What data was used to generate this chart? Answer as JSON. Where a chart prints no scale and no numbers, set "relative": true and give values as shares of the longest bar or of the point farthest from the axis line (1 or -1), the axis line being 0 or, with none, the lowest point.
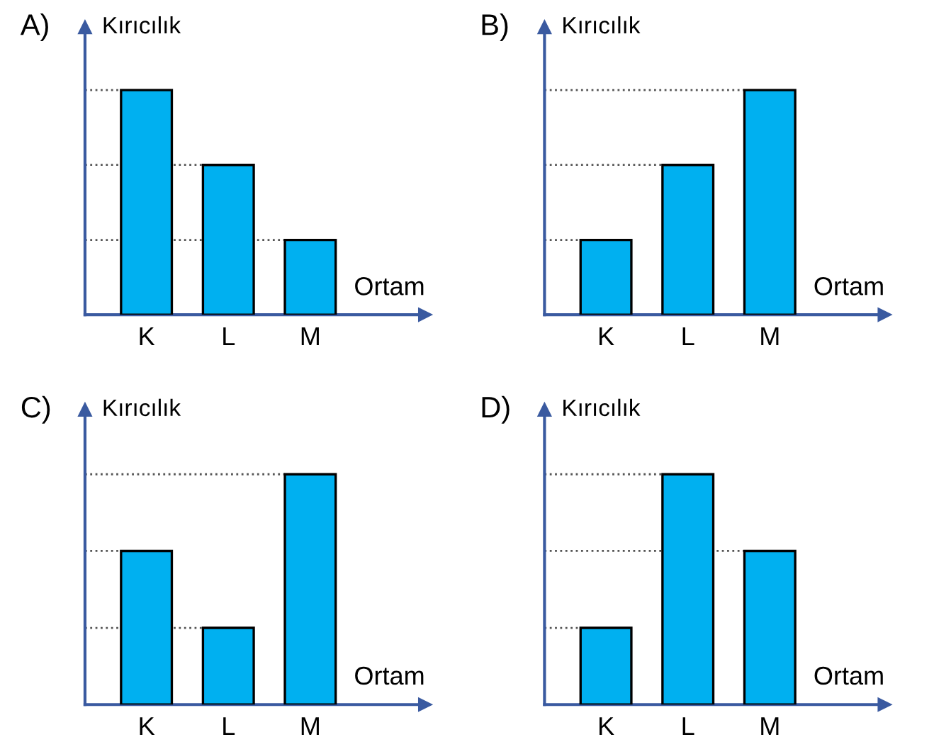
{
  "chart_data": [
    {
      "type": "bar",
      "title": "A)",
      "ylabel": "Kırıcılık",
      "xlabel": "Ortam",
      "relative": true,
      "categories": [
        "K",
        "L",
        "M"
      ],
      "values": [
        1,
        0.667,
        0.333
      ],
      "color": "#00b0f0",
      "grid": false,
      "ref_lines": [
        {
          "axis": "y",
          "value": 1,
          "color": "#555555",
          "line_style": "dotted"
        },
        {
          "axis": "y",
          "value": 0.667,
          "color": "#555555",
          "line_style": "dotted"
        },
        {
          "axis": "y",
          "value": 0.333,
          "color": "#555555",
          "line_style": "dotted"
        }
      ]
    },
    {
      "type": "bar",
      "title": "B)",
      "ylabel": "Kırıcılık",
      "xlabel": "Ortam",
      "relative": true,
      "categories": [
        "K",
        "L",
        "M"
      ],
      "values": [
        0.333,
        0.667,
        1
      ],
      "color": "#00b0f0",
      "grid": false,
      "ref_lines": [
        {
          "axis": "y",
          "value": 1,
          "color": "#555555",
          "line_style": "dotted"
        },
        {
          "axis": "y",
          "value": 0.667,
          "color": "#555555",
          "line_style": "dotted"
        },
        {
          "axis": "y",
          "value": 0.333,
          "color": "#555555",
          "line_style": "dotted"
        }
      ]
    },
    {
      "type": "bar",
      "title": "C)",
      "ylabel": "Kırıcılık",
      "xlabel": "Ortam",
      "relative": true,
      "categories": [
        "K",
        "L",
        "M"
      ],
      "values": [
        0.667,
        0.333,
        1
      ],
      "color": "#00b0f0",
      "grid": false,
      "ref_lines": [
        {
          "axis": "y",
          "value": 1,
          "color": "#555555",
          "line_style": "dotted"
        },
        {
          "axis": "y",
          "value": 0.667,
          "color": "#555555",
          "line_style": "dotted"
        },
        {
          "axis": "y",
          "value": 0.333,
          "color": "#555555",
          "line_style": "dotted"
        }
      ]
    },
    {
      "type": "bar",
      "title": "D)",
      "ylabel": "Kırıcılık",
      "xlabel": "Ortam",
      "relative": true,
      "categories": [
        "K",
        "L",
        "M"
      ],
      "values": [
        0.333,
        1,
        0.667
      ],
      "color": "#00b0f0",
      "grid": false,
      "ref_lines": [
        {
          "axis": "y",
          "value": 1,
          "color": "#555555",
          "line_style": "dotted"
        },
        {
          "axis": "y",
          "value": 0.667,
          "color": "#555555",
          "line_style": "dotted"
        },
        {
          "axis": "y",
          "value": 0.333,
          "color": "#555555",
          "line_style": "dotted"
        }
      ]
    }
  ]
}
